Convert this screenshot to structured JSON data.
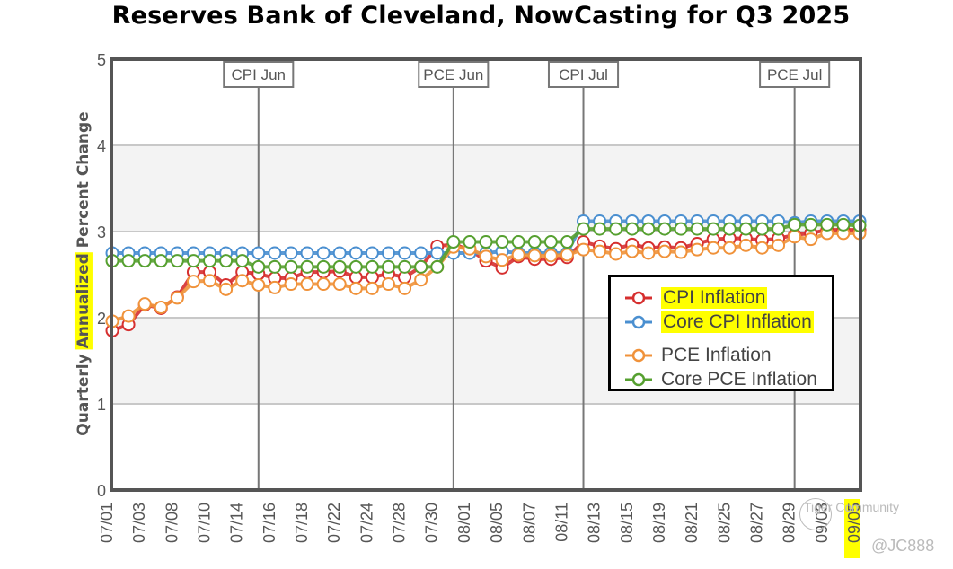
{
  "chart_data": {
    "type": "line",
    "title": "Reserves Bank of Cleveland, NowCasting for Q3 2025",
    "xlabel": "",
    "ylabel": "Quarterly Annualized Percent Change",
    "ylabel_parts": [
      "Quarterly ",
      "Annualized",
      " Percent Change"
    ],
    "ylim": [
      0,
      5
    ],
    "yticks": [
      "0",
      "1",
      "2",
      "3",
      "4",
      "5"
    ],
    "grid": true,
    "legend_position": "center-right",
    "x": [
      "07/01",
      "07/02",
      "07/03",
      "07/07",
      "07/08",
      "07/09",
      "07/10",
      "07/11",
      "07/14",
      "07/15",
      "07/16",
      "07/17",
      "07/18",
      "07/21",
      "07/22",
      "07/23",
      "07/24",
      "07/25",
      "07/28",
      "07/29",
      "07/30",
      "07/31",
      "08/01",
      "08/04",
      "08/05",
      "08/06",
      "08/07",
      "08/08",
      "08/11",
      "08/12",
      "08/13",
      "08/14",
      "08/15",
      "08/18",
      "08/19",
      "08/20",
      "08/21",
      "08/22",
      "08/25",
      "08/26",
      "08/27",
      "08/28",
      "08/29",
      "09/02",
      "09/03",
      "09/04",
      "09/05"
    ],
    "xtick_labels": [
      "07/01",
      "07/03",
      "07/08",
      "07/10",
      "07/14",
      "07/16",
      "07/18",
      "07/22",
      "07/24",
      "07/28",
      "07/30",
      "08/01",
      "08/05",
      "08/07",
      "08/11",
      "08/13",
      "08/15",
      "08/19",
      "08/21",
      "08/25",
      "08/27",
      "08/29",
      "09/03",
      "09/05"
    ],
    "highlighted_xtick": "09/05",
    "events": [
      {
        "label": "CPI Jun",
        "x": "07/15"
      },
      {
        "label": "PCE Jun",
        "x": "07/31"
      },
      {
        "label": "CPI Jul",
        "x": "08/12"
      },
      {
        "label": "PCE Jul",
        "x": "08/29"
      }
    ],
    "series": [
      {
        "name": "CPI Inflation",
        "color": "#d62f2f",
        "highlighted": true,
        "values": [
          1.85,
          1.92,
          2.15,
          2.11,
          2.24,
          2.53,
          2.53,
          2.38,
          2.53,
          2.51,
          2.46,
          2.46,
          2.53,
          2.53,
          2.54,
          2.47,
          2.47,
          2.51,
          2.47,
          2.59,
          2.83,
          2.85,
          2.79,
          2.66,
          2.58,
          2.71,
          2.68,
          2.68,
          2.7,
          2.88,
          2.83,
          2.8,
          2.85,
          2.81,
          2.82,
          2.81,
          2.86,
          2.91,
          2.92,
          2.92,
          2.9,
          2.92,
          2.96,
          2.98,
          3.02,
          3.02,
          3.02
        ]
      },
      {
        "name": "Core CPI Inflation",
        "color": "#4a8fd0",
        "highlighted": true,
        "values": [
          2.75,
          2.75,
          2.75,
          2.75,
          2.75,
          2.75,
          2.75,
          2.75,
          2.75,
          2.75,
          2.75,
          2.75,
          2.75,
          2.75,
          2.75,
          2.75,
          2.75,
          2.75,
          2.75,
          2.75,
          2.75,
          2.75,
          2.75,
          2.75,
          2.77,
          2.75,
          2.75,
          2.75,
          2.75,
          3.12,
          3.12,
          3.12,
          3.12,
          3.12,
          3.12,
          3.12,
          3.12,
          3.12,
          3.12,
          3.12,
          3.12,
          3.12,
          3.1,
          3.12,
          3.12,
          3.12,
          3.12
        ]
      },
      {
        "name": "PCE Inflation",
        "color": "#f0923a",
        "highlighted": false,
        "values": [
          1.96,
          2.02,
          2.16,
          2.12,
          2.23,
          2.42,
          2.43,
          2.33,
          2.43,
          2.38,
          2.35,
          2.39,
          2.39,
          2.39,
          2.39,
          2.34,
          2.34,
          2.39,
          2.34,
          2.44,
          2.59,
          2.82,
          2.8,
          2.71,
          2.67,
          2.73,
          2.72,
          2.72,
          2.73,
          2.79,
          2.77,
          2.74,
          2.77,
          2.75,
          2.77,
          2.76,
          2.79,
          2.81,
          2.81,
          2.84,
          2.81,
          2.84,
          2.94,
          2.91,
          2.98,
          2.98,
          2.98
        ]
      },
      {
        "name": "Core PCE Inflation",
        "color": "#56a030",
        "highlighted": false,
        "values": [
          2.66,
          2.66,
          2.66,
          2.66,
          2.66,
          2.66,
          2.66,
          2.66,
          2.66,
          2.59,
          2.59,
          2.59,
          2.59,
          2.59,
          2.59,
          2.59,
          2.59,
          2.59,
          2.59,
          2.59,
          2.59,
          2.88,
          2.88,
          2.88,
          2.88,
          2.88,
          2.88,
          2.88,
          2.88,
          3.03,
          3.03,
          3.03,
          3.03,
          3.03,
          3.03,
          3.03,
          3.03,
          3.03,
          3.03,
          3.03,
          3.03,
          3.03,
          3.08,
          3.08,
          3.08,
          3.08,
          3.07
        ]
      }
    ]
  },
  "watermark": {
    "brand": "Tiger Community",
    "handle": "@JC888"
  }
}
